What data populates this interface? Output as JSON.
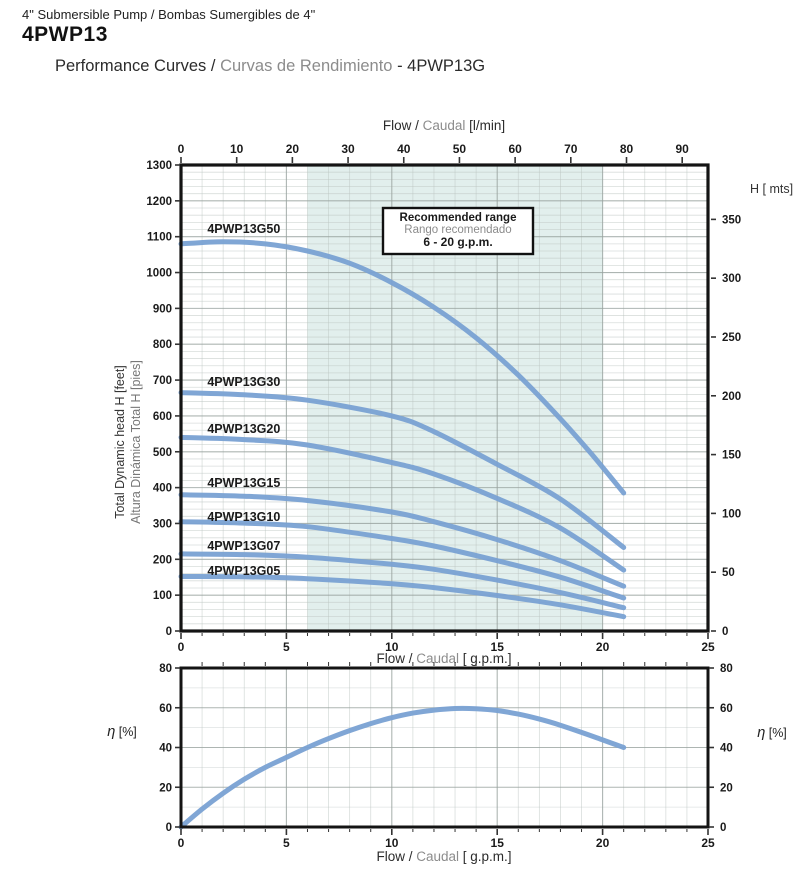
{
  "header": {
    "subtitle": "4\" Submersible Pump / Bombas Sumergibles de 4\"",
    "model": "4PWP13",
    "title_en": "Performance Curves / ",
    "title_es": "Curvas de Rendimiento",
    "title_suffix": " - 4PWP13G"
  },
  "colors": {
    "curve": "#79A1D3",
    "shade": "#E2EFED",
    "grid_minor": "#B9C2C0",
    "grid_major": "#98A29F",
    "border": "#141414",
    "text_dark": "#1A1A1A",
    "text_gray": "#8C8C8C"
  },
  "chart_data": [
    {
      "type": "line",
      "title": "Pump head curves",
      "top_axis": {
        "label_en": "Flow / ",
        "label_es": "Caudal",
        "label_unit": " [l/min]",
        "ticks": [
          0,
          10,
          20,
          30,
          40,
          50,
          60,
          70,
          80,
          90
        ]
      },
      "bottom_axis": {
        "label_en": "Flow / ",
        "label_es": "Caudal",
        "label_unit": " [ g.p.m.]",
        "ticks": [
          0,
          5,
          10,
          15,
          20,
          25
        ],
        "range": [
          0,
          25
        ]
      },
      "left_axis": {
        "title_en": "Total Dynamic head H [feet]",
        "title_es": "Altura Dinámica Total H [pies]",
        "ticks": [
          0,
          100,
          200,
          300,
          400,
          500,
          600,
          700,
          800,
          900,
          1000,
          1100,
          1200,
          1300
        ],
        "range": [
          0,
          1300
        ]
      },
      "right_axis": {
        "title": "H [ mts]",
        "ticks": [
          0,
          50,
          100,
          150,
          200,
          250,
          300,
          350
        ]
      },
      "recommended_range": {
        "line1": "Recommended range",
        "line2": "Rango recomendado",
        "line3": "6 - 20 g.p.m.",
        "q_min": 6,
        "q_max": 20
      },
      "series": [
        {
          "name": "4PWP13G50",
          "label_q": 1.25,
          "label_h": 1110,
          "points": [
            [
              0,
              1080
            ],
            [
              2,
              1086
            ],
            [
              4,
              1080
            ],
            [
              6,
              1060
            ],
            [
              8,
              1026
            ],
            [
              10,
              972
            ],
            [
              12,
              903
            ],
            [
              14,
              818
            ],
            [
              16,
              714
            ],
            [
              18,
              592
            ],
            [
              19.5,
              492
            ],
            [
              21,
              385
            ]
          ]
        },
        {
          "name": "4PWP13G30",
          "label_q": 1.25,
          "label_h": 683,
          "points": [
            [
              0,
              665
            ],
            [
              3,
              659
            ],
            [
              6,
              644
            ],
            [
              10,
              600
            ],
            [
              12,
              556
            ],
            [
              15,
              465
            ],
            [
              18,
              368
            ],
            [
              21,
              233
            ]
          ]
        },
        {
          "name": "4PWP13G20",
          "label_q": 1.25,
          "label_h": 552,
          "points": [
            [
              0,
              540
            ],
            [
              3,
              534
            ],
            [
              6,
              519
            ],
            [
              10,
              470
            ],
            [
              12,
              438
            ],
            [
              15,
              370
            ],
            [
              18,
              287
            ],
            [
              21,
              170
            ]
          ]
        },
        {
          "name": "4PWP13G15",
          "label_q": 1.25,
          "label_h": 402,
          "points": [
            [
              0,
              380
            ],
            [
              3,
              376
            ],
            [
              6,
              364
            ],
            [
              10,
              332
            ],
            [
              12,
              305
            ],
            [
              15,
              255
            ],
            [
              18,
              196
            ],
            [
              21,
              125
            ]
          ]
        },
        {
          "name": "4PWP13G10",
          "label_q": 1.25,
          "label_h": 307,
          "points": [
            [
              0,
              305
            ],
            [
              3,
              301
            ],
            [
              6,
              291
            ],
            [
              10,
              258
            ],
            [
              12,
              237
            ],
            [
              15,
              196
            ],
            [
              18,
              150
            ],
            [
              21,
              92
            ]
          ]
        },
        {
          "name": "4PWP13G07",
          "label_q": 1.25,
          "label_h": 226,
          "points": [
            [
              0,
              215
            ],
            [
              3,
              213
            ],
            [
              6,
              206
            ],
            [
              10,
              186
            ],
            [
              12,
              172
            ],
            [
              15,
              142
            ],
            [
              18,
              107
            ],
            [
              21,
              65
            ]
          ]
        },
        {
          "name": "4PWP13G05",
          "label_q": 1.25,
          "label_h": 156,
          "points": [
            [
              0,
              152
            ],
            [
              3,
              151
            ],
            [
              6,
              146
            ],
            [
              10,
              132
            ],
            [
              12,
              121
            ],
            [
              15,
              99
            ],
            [
              18,
              73
            ],
            [
              21,
              40
            ]
          ]
        }
      ]
    },
    {
      "type": "line",
      "title": "Efficiency curve",
      "y_axis": {
        "label_eta": "η",
        "label_unit": " [%]",
        "ticks": [
          0,
          20,
          40,
          60,
          80
        ],
        "range": [
          0,
          80
        ]
      },
      "x_axis": {
        "label_en": "Flow / ",
        "label_es": "Caudal",
        "label_unit": " [ g.p.m.]",
        "ticks": [
          0,
          5,
          10,
          15,
          20,
          25
        ],
        "range": [
          0,
          25
        ]
      },
      "series": [
        {
          "name": "efficiency",
          "points": [
            [
              0,
              0
            ],
            [
              1,
              9
            ],
            [
              2,
              17
            ],
            [
              3,
              24
            ],
            [
              4,
              30
            ],
            [
              5,
              35
            ],
            [
              6,
              40
            ],
            [
              7,
              44.5
            ],
            [
              8,
              48.5
            ],
            [
              9,
              52
            ],
            [
              10,
              55
            ],
            [
              11,
              57.3
            ],
            [
              12,
              58.8
            ],
            [
              13,
              59.6
            ],
            [
              14,
              59.5
            ],
            [
              15,
              58.6
            ],
            [
              16,
              56.8
            ],
            [
              17,
              54.3
            ],
            [
              18,
              51.2
            ],
            [
              19,
              47.6
            ],
            [
              20,
              43.8
            ],
            [
              21,
              40
            ]
          ]
        }
      ]
    }
  ]
}
